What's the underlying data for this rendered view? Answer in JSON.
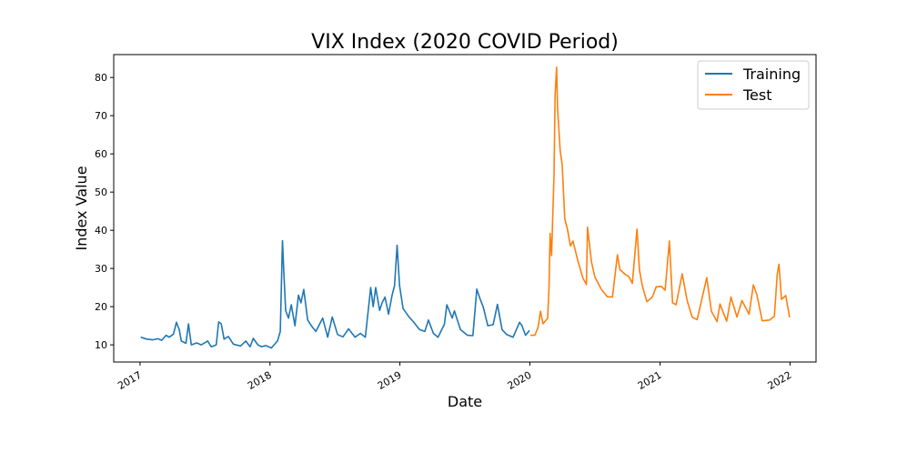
{
  "chart_data": {
    "type": "line",
    "title": "VIX Index (2020 COVID Period)",
    "xlabel": "Date",
    "ylabel": "Index Value",
    "x_ticks": [
      "2017",
      "2018",
      "2019",
      "2020",
      "2021",
      "2022"
    ],
    "y_ticks": [
      10,
      20,
      30,
      40,
      50,
      60,
      70,
      80
    ],
    "xlim": [
      "2016-10-19",
      "2022-03-15"
    ],
    "ylim": [
      5.5,
      86
    ],
    "grid": false,
    "legend": "top-right",
    "series": [
      {
        "name": "Training",
        "color": "#1f77b4",
        "points": [
          [
            "2017-01-03",
            12.0
          ],
          [
            "2017-01-20",
            11.5
          ],
          [
            "2017-02-06",
            11.3
          ],
          [
            "2017-02-20",
            11.6
          ],
          [
            "2017-03-03",
            11.2
          ],
          [
            "2017-03-15",
            12.5
          ],
          [
            "2017-03-24",
            12.0
          ],
          [
            "2017-04-05",
            12.8
          ],
          [
            "2017-04-13",
            15.9
          ],
          [
            "2017-04-21",
            14.0
          ],
          [
            "2017-04-27",
            11.0
          ],
          [
            "2017-05-10",
            10.4
          ],
          [
            "2017-05-17",
            15.5
          ],
          [
            "2017-05-25",
            10.0
          ],
          [
            "2017-06-09",
            10.5
          ],
          [
            "2017-06-22",
            10.0
          ],
          [
            "2017-07-10",
            11.0
          ],
          [
            "2017-07-20",
            9.5
          ],
          [
            "2017-08-03",
            10.0
          ],
          [
            "2017-08-10",
            16.0
          ],
          [
            "2017-08-17",
            15.5
          ],
          [
            "2017-08-25",
            11.5
          ],
          [
            "2017-09-06",
            12.2
          ],
          [
            "2017-09-20",
            10.2
          ],
          [
            "2017-10-10",
            9.7
          ],
          [
            "2017-10-25",
            11.0
          ],
          [
            "2017-11-06",
            9.5
          ],
          [
            "2017-11-15",
            11.7
          ],
          [
            "2017-11-28",
            10.0
          ],
          [
            "2017-12-08",
            9.5
          ],
          [
            "2017-12-20",
            9.8
          ],
          [
            "2018-01-05",
            9.2
          ],
          [
            "2018-01-22",
            11.0
          ],
          [
            "2018-01-30",
            13.5
          ],
          [
            "2018-02-05",
            37.3
          ],
          [
            "2018-02-09",
            29.0
          ],
          [
            "2018-02-14",
            19.0
          ],
          [
            "2018-02-22",
            17.0
          ],
          [
            "2018-03-02",
            20.5
          ],
          [
            "2018-03-12",
            15.0
          ],
          [
            "2018-03-22",
            23.0
          ],
          [
            "2018-03-29",
            21.0
          ],
          [
            "2018-04-06",
            24.5
          ],
          [
            "2018-04-17",
            16.5
          ],
          [
            "2018-04-27",
            15.0
          ],
          [
            "2018-05-10",
            13.5
          ],
          [
            "2018-05-29",
            17.0
          ],
          [
            "2018-06-12",
            12.0
          ],
          [
            "2018-06-25",
            17.3
          ],
          [
            "2018-07-10",
            12.7
          ],
          [
            "2018-07-25",
            12.1
          ],
          [
            "2018-08-10",
            14.2
          ],
          [
            "2018-08-28",
            12.0
          ],
          [
            "2018-09-12",
            13.0
          ],
          [
            "2018-09-26",
            12.0
          ],
          [
            "2018-10-11",
            25.0
          ],
          [
            "2018-10-18",
            20.0
          ],
          [
            "2018-10-25",
            25.0
          ],
          [
            "2018-11-05",
            19.0
          ],
          [
            "2018-11-12",
            21.0
          ],
          [
            "2018-11-20",
            22.5
          ],
          [
            "2018-11-30",
            18.0
          ],
          [
            "2018-12-10",
            23.0
          ],
          [
            "2018-12-17",
            25.5
          ],
          [
            "2018-12-24",
            36.1
          ],
          [
            "2018-12-31",
            25.5
          ],
          [
            "2019-01-10",
            19.5
          ],
          [
            "2019-01-25",
            17.5
          ],
          [
            "2019-02-08",
            16.0
          ],
          [
            "2019-02-25",
            14.0
          ],
          [
            "2019-03-12",
            13.5
          ],
          [
            "2019-03-22",
            16.5
          ],
          [
            "2019-04-05",
            13.0
          ],
          [
            "2019-04-18",
            12.0
          ],
          [
            "2019-05-06",
            15.4
          ],
          [
            "2019-05-13",
            20.5
          ],
          [
            "2019-05-28",
            17.0
          ],
          [
            "2019-06-03",
            18.9
          ],
          [
            "2019-06-20",
            14.0
          ],
          [
            "2019-07-10",
            12.5
          ],
          [
            "2019-07-25",
            12.4
          ],
          [
            "2019-08-05",
            24.6
          ],
          [
            "2019-08-14",
            22.1
          ],
          [
            "2019-08-23",
            19.9
          ],
          [
            "2019-09-05",
            15.0
          ],
          [
            "2019-09-20",
            15.3
          ],
          [
            "2019-10-02",
            20.6
          ],
          [
            "2019-10-15",
            14.0
          ],
          [
            "2019-10-28",
            12.7
          ],
          [
            "2019-11-15",
            12.0
          ],
          [
            "2019-12-03",
            15.9
          ],
          [
            "2019-12-10",
            15.0
          ],
          [
            "2019-12-20",
            12.5
          ],
          [
            "2019-12-31",
            13.8
          ]
        ]
      },
      {
        "name": "Test",
        "color": "#ff7f0e",
        "points": [
          [
            "2020-01-02",
            12.5
          ],
          [
            "2020-01-15",
            12.5
          ],
          [
            "2020-01-24",
            14.5
          ],
          [
            "2020-01-31",
            18.8
          ],
          [
            "2020-02-07",
            15.5
          ],
          [
            "2020-02-20",
            17.0
          ],
          [
            "2020-02-24",
            25.0
          ],
          [
            "2020-02-27",
            39.2
          ],
          [
            "2020-03-02",
            33.4
          ],
          [
            "2020-03-09",
            54.5
          ],
          [
            "2020-03-12",
            75.5
          ],
          [
            "2020-03-16",
            82.7
          ],
          [
            "2020-03-19",
            72.0
          ],
          [
            "2020-03-26",
            61.0
          ],
          [
            "2020-04-01",
            57.1
          ],
          [
            "2020-04-08",
            43.0
          ],
          [
            "2020-04-16",
            40.1
          ],
          [
            "2020-04-24",
            35.9
          ],
          [
            "2020-05-01",
            37.2
          ],
          [
            "2020-05-15",
            32.0
          ],
          [
            "2020-05-29",
            27.5
          ],
          [
            "2020-06-08",
            25.8
          ],
          [
            "2020-06-11",
            40.8
          ],
          [
            "2020-06-22",
            31.8
          ],
          [
            "2020-07-02",
            27.7
          ],
          [
            "2020-07-20",
            24.5
          ],
          [
            "2020-08-06",
            22.6
          ],
          [
            "2020-08-20",
            22.5
          ],
          [
            "2020-09-03",
            33.6
          ],
          [
            "2020-09-10",
            29.7
          ],
          [
            "2020-09-24",
            28.5
          ],
          [
            "2020-10-05",
            27.9
          ],
          [
            "2020-10-15",
            26.1
          ],
          [
            "2020-10-28",
            40.3
          ],
          [
            "2020-11-04",
            29.6
          ],
          [
            "2020-11-12",
            25.4
          ],
          [
            "2020-11-25",
            21.3
          ],
          [
            "2020-12-10",
            22.5
          ],
          [
            "2020-12-21",
            25.2
          ],
          [
            "2021-01-05",
            25.3
          ],
          [
            "2021-01-15",
            24.3
          ],
          [
            "2021-01-27",
            37.2
          ],
          [
            "2021-02-05",
            21.0
          ],
          [
            "2021-02-15",
            20.5
          ],
          [
            "2021-03-04",
            28.6
          ],
          [
            "2021-03-18",
            21.5
          ],
          [
            "2021-04-01",
            17.3
          ],
          [
            "2021-04-15",
            16.6
          ],
          [
            "2021-05-12",
            27.6
          ],
          [
            "2021-05-25",
            18.8
          ],
          [
            "2021-06-10",
            16.1
          ],
          [
            "2021-06-18",
            20.7
          ],
          [
            "2021-07-07",
            16.2
          ],
          [
            "2021-07-19",
            22.5
          ],
          [
            "2021-08-05",
            17.3
          ],
          [
            "2021-08-19",
            21.6
          ],
          [
            "2021-09-08",
            18.0
          ],
          [
            "2021-09-20",
            25.7
          ],
          [
            "2021-09-30",
            23.1
          ],
          [
            "2021-10-15",
            16.3
          ],
          [
            "2021-11-05",
            16.5
          ],
          [
            "2021-11-18",
            17.5
          ],
          [
            "2021-11-26",
            28.6
          ],
          [
            "2021-12-01",
            31.1
          ],
          [
            "2021-12-08",
            21.9
          ],
          [
            "2021-12-20",
            22.9
          ],
          [
            "2021-12-31",
            17.2
          ]
        ]
      }
    ]
  }
}
